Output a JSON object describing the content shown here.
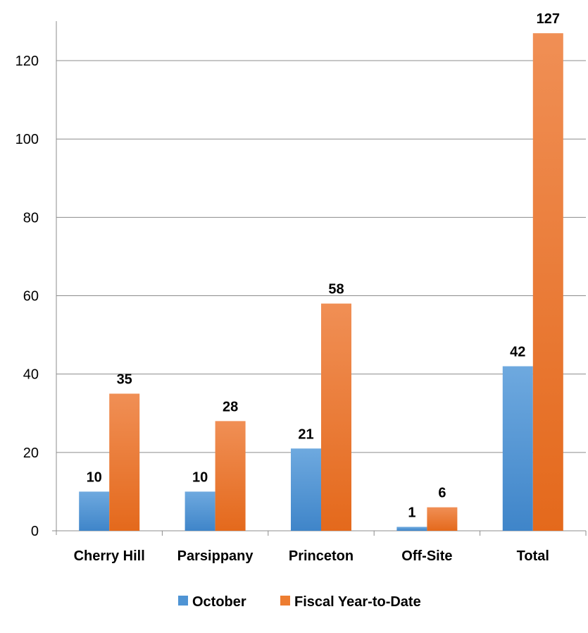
{
  "chart_data": {
    "type": "bar",
    "title": "",
    "xlabel": "",
    "ylabel": "",
    "categories": [
      "Cherry Hill",
      "Parsippany",
      "Princeton",
      "Off-Site",
      "Total"
    ],
    "series": [
      {
        "name": "October",
        "values": [
          10,
          10,
          21,
          1,
          42
        ],
        "color": "#4f94d4"
      },
      {
        "name": "Fiscal Year-to-Date",
        "values": [
          35,
          28,
          58,
          6,
          127
        ],
        "color": "#ed7d31"
      }
    ],
    "ylim": [
      0,
      130
    ],
    "yticks": [
      0,
      20,
      40,
      60,
      80,
      100,
      120
    ],
    "grid": true,
    "data_labels": true,
    "legend_position": "bottom"
  }
}
